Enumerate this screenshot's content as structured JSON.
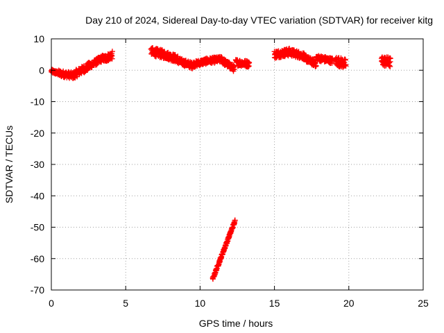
{
  "chart_data": {
    "type": "scatter",
    "title": "Day 210 of 2024, Sidereal Day-to-day VTEC variation (SDTVAR) for receiver kitg",
    "xlabel": "GPS time / hours",
    "ylabel": "SDTVAR / TECUs",
    "xlim": [
      0,
      25
    ],
    "ylim": [
      -70,
      10
    ],
    "xticks": [
      0,
      5,
      10,
      15,
      20,
      25
    ],
    "yticks": [
      -70,
      -60,
      -50,
      -40,
      -30,
      -20,
      -10,
      0,
      10
    ],
    "grid": true,
    "marker": "plus",
    "colors": {
      "series": "#ff0000",
      "grid": "#a0a0a0",
      "axis": "#000000"
    },
    "series": [
      {
        "name": "SDTVAR",
        "segments": [
          {
            "t0": 0.0,
            "t1": 0.5,
            "y0": -0.3,
            "y1": -1.0,
            "spread": 1.2
          },
          {
            "t0": 0.5,
            "t1": 1.6,
            "y0": -1.0,
            "y1": -1.8,
            "spread": 2.0
          },
          {
            "t0": 1.6,
            "t1": 2.6,
            "y0": -1.2,
            "y1": 1.5,
            "spread": 2.4
          },
          {
            "t0": 2.6,
            "t1": 3.5,
            "y0": 1.5,
            "y1": 4.0,
            "spread": 2.0
          },
          {
            "t0": 3.5,
            "t1": 4.1,
            "y0": 3.5,
            "y1": 4.8,
            "spread": 2.4
          },
          {
            "t0": 6.7,
            "t1": 7.6,
            "y0": 6.0,
            "y1": 5.0,
            "spread": 2.6
          },
          {
            "t0": 7.6,
            "t1": 8.5,
            "y0": 5.0,
            "y1": 3.5,
            "spread": 2.4
          },
          {
            "t0": 8.5,
            "t1": 9.5,
            "y0": 3.0,
            "y1": 1.5,
            "spread": 2.0
          },
          {
            "t0": 9.5,
            "t1": 10.5,
            "y0": 1.8,
            "y1": 3.0,
            "spread": 1.8
          },
          {
            "t0": 10.5,
            "t1": 11.5,
            "y0": 3.0,
            "y1": 3.5,
            "spread": 1.8
          },
          {
            "t0": 11.5,
            "t1": 12.3,
            "y0": 3.0,
            "y1": 0.5,
            "spread": 2.0
          },
          {
            "t0": 12.4,
            "t1": 13.3,
            "y0": 2.5,
            "y1": 2.0,
            "spread": 2.0
          },
          {
            "t0": 15.0,
            "t1": 16.0,
            "y0": 5.0,
            "y1": 5.8,
            "spread": 2.4
          },
          {
            "t0": 16.0,
            "t1": 17.0,
            "y0": 5.8,
            "y1": 4.5,
            "spread": 2.2
          },
          {
            "t0": 17.0,
            "t1": 17.8,
            "y0": 4.0,
            "y1": 2.0,
            "spread": 2.0
          },
          {
            "t0": 17.8,
            "t1": 18.9,
            "y0": 4.0,
            "y1": 3.0,
            "spread": 1.8
          },
          {
            "t0": 19.1,
            "t1": 19.8,
            "y0": 3.0,
            "y1": 2.0,
            "spread": 3.0
          },
          {
            "t0": 22.2,
            "t1": 22.8,
            "y0": 3.0,
            "y1": 2.5,
            "spread": 3.2
          },
          {
            "t0": 10.85,
            "t1": 12.35,
            "y0": -66.5,
            "y1": -48.0,
            "spread": 0.8
          }
        ]
      }
    ]
  }
}
